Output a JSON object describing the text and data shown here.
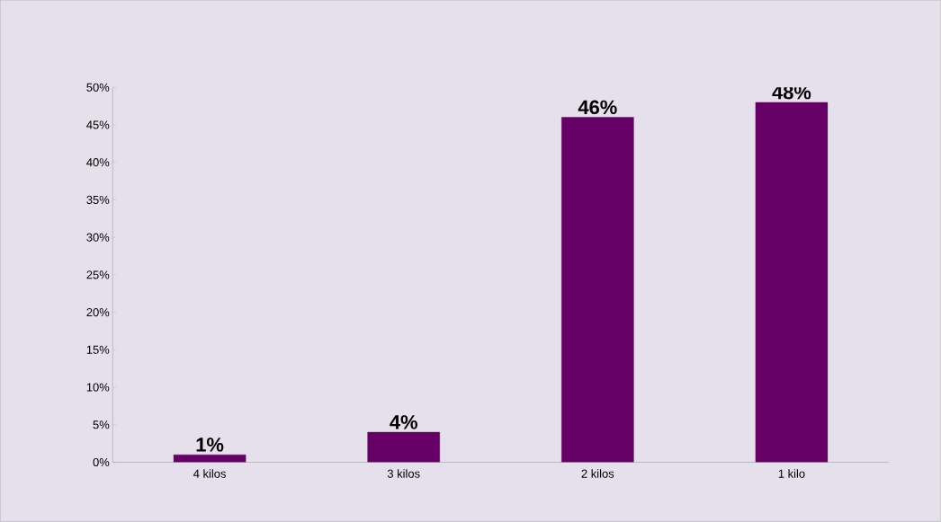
{
  "chart_data": {
    "type": "bar",
    "categories": [
      "4 kilos",
      "3 kilos",
      "2 kilos",
      "1 kilo"
    ],
    "values": [
      1,
      4,
      46,
      48
    ],
    "value_labels": [
      "1%",
      "4%",
      "46%",
      "48%"
    ],
    "color": "#660066",
    "ylim": [
      0,
      50
    ],
    "yticks": [
      {
        "value": 0,
        "label": "0%"
      },
      {
        "value": 5,
        "label": "5%"
      },
      {
        "value": 10,
        "label": "10%"
      },
      {
        "value": 15,
        "label": "15%"
      },
      {
        "value": 20,
        "label": "20%"
      },
      {
        "value": 25,
        "label": "25%"
      },
      {
        "value": 30,
        "label": "30%"
      },
      {
        "value": 35,
        "label": "35%"
      },
      {
        "value": 40,
        "label": "40%"
      },
      {
        "value": 45,
        "label": "45%"
      },
      {
        "value": 50,
        "label": "50%"
      }
    ],
    "grid": false
  }
}
